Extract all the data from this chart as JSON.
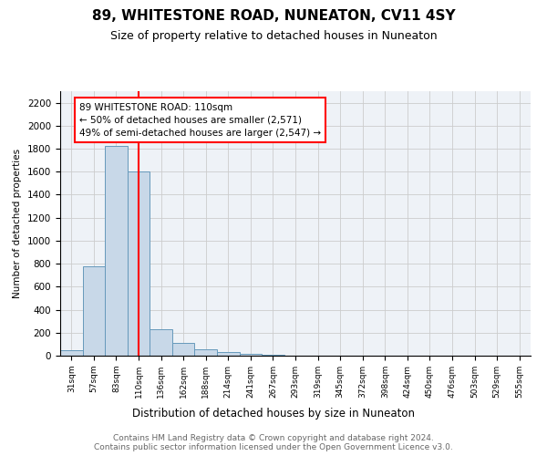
{
  "title": "89, WHITESTONE ROAD, NUNEATON, CV11 4SY",
  "subtitle": "Size of property relative to detached houses in Nuneaton",
  "xlabel": "Distribution of detached houses by size in Nuneaton",
  "ylabel": "Number of detached properties",
  "footnote": "Contains HM Land Registry data © Crown copyright and database right 2024.\nContains public sector information licensed under the Open Government Licence v3.0.",
  "bar_labels": [
    "31sqm",
    "57sqm",
    "83sqm",
    "110sqm",
    "136sqm",
    "162sqm",
    "188sqm",
    "214sqm",
    "241sqm",
    "267sqm",
    "293sqm",
    "319sqm",
    "345sqm",
    "372sqm",
    "398sqm",
    "424sqm",
    "450sqm",
    "476sqm",
    "503sqm",
    "529sqm",
    "555sqm"
  ],
  "bar_values": [
    50,
    775,
    1825,
    1600,
    230,
    110,
    55,
    30,
    15,
    5,
    0,
    0,
    0,
    0,
    0,
    0,
    0,
    0,
    0,
    0,
    0
  ],
  "bar_color": "#c8d8e8",
  "bar_edgecolor": "#6699bb",
  "vline_x_index": 3,
  "vline_color": "red",
  "annotation_text": "89 WHITESTONE ROAD: 110sqm\n← 50% of detached houses are smaller (2,571)\n49% of semi-detached houses are larger (2,547) →",
  "ylim": [
    0,
    2300
  ],
  "yticks": [
    0,
    200,
    400,
    600,
    800,
    1000,
    1200,
    1400,
    1600,
    1800,
    2000,
    2200
  ],
  "grid_color": "#cccccc",
  "bg_color": "#eef2f7",
  "title_fontsize": 11,
  "subtitle_fontsize": 9,
  "footnote_fontsize": 6.5
}
